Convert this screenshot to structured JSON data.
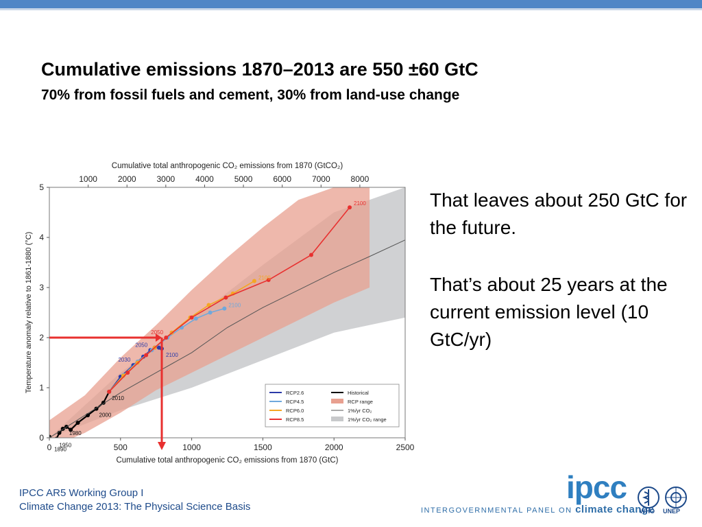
{
  "slide": {
    "title": "Cumulative emissions 1870–2013 are 550 ±60 GtC",
    "subtitle": "70% from fossil fuels and cement, 30% from land-use change",
    "side_text_1": "That leaves about 250 GtC for the future.",
    "side_text_2": "That’s about 25 years at the current emission level (10 GtC/yr)",
    "footer_line1": "IPCC AR5 Working Group I",
    "footer_line2": "Climate Change 2013:  The Physical Science Basis",
    "logo_text": "ipcc",
    "logo_tagline_prefix": "INTERGOVERNMENTAL PANEL ON ",
    "logo_tagline_suffix": "climate change",
    "who_label": "WHO",
    "unep_label": "UNEP",
    "accent_color": "#4f86c6"
  },
  "chart_data": {
    "type": "line",
    "title": "",
    "xlabel": "Cumulative total anthropogenic CO₂ emissions from 1870 (GtC)",
    "x2label": "Cumulative total anthropogenic CO₂ emissions from 1870 (GtCO₂)",
    "ylabel": "Temperature anomaly relative to 1861-1880 (°C)",
    "xlim": [
      0,
      2500
    ],
    "ylim": [
      0,
      5
    ],
    "xticks": [
      0,
      500,
      1000,
      1500,
      2000,
      2500
    ],
    "yticks": [
      0,
      1,
      2,
      3,
      4,
      5
    ],
    "x2ticks": [
      1000,
      2000,
      3000,
      4000,
      5000,
      6000,
      7000,
      8000
    ],
    "legend_position": "bottom-right",
    "series": [
      {
        "name": "Historical",
        "color": "#000000",
        "x": [
          0,
          15,
          30,
          50,
          70,
          95,
          120,
          150,
          200,
          270,
          330,
          380,
          420
        ],
        "y": [
          0.02,
          -0.1,
          -0.05,
          -0.02,
          0.1,
          0.18,
          0.22,
          0.16,
          0.3,
          0.45,
          0.58,
          0.7,
          0.92
        ],
        "point_labels": [
          {
            "i": 1,
            "text": "1890"
          },
          {
            "i": 3,
            "text": "1950"
          },
          {
            "i": 6,
            "text": "1980"
          },
          {
            "i": 10,
            "text": "2000"
          },
          {
            "i": 12,
            "text": "2010"
          }
        ]
      },
      {
        "name": "RCP2.6",
        "color": "#2b3aa8",
        "x": [
          420,
          500,
          590,
          660,
          710,
          740,
          770,
          790
        ],
        "y": [
          0.92,
          1.22,
          1.45,
          1.62,
          1.75,
          1.8,
          1.8,
          1.78
        ],
        "point_labels": [
          {
            "i": 2,
            "text": "2030"
          },
          {
            "i": 4,
            "text": "2050"
          },
          {
            "i": 7,
            "text": "2100"
          }
        ]
      },
      {
        "name": "RCP4.5",
        "color": "#6fa8dc",
        "x": [
          420,
          520,
          620,
          720,
          830,
          930,
          1030,
          1130,
          1230
        ],
        "y": [
          0.92,
          1.25,
          1.52,
          1.75,
          2.0,
          2.2,
          2.38,
          2.5,
          2.58
        ],
        "point_labels": [
          {
            "i": 8,
            "text": "2100"
          }
        ]
      },
      {
        "name": "RCP6.0",
        "color": "#f5a623",
        "x": [
          420,
          520,
          620,
          740,
          860,
          990,
          1120,
          1290,
          1440
        ],
        "y": [
          0.92,
          1.24,
          1.5,
          1.8,
          2.1,
          2.4,
          2.65,
          2.88,
          3.13
        ],
        "point_labels": [
          {
            "i": 8,
            "text": "2100"
          }
        ]
      },
      {
        "name": "RCP8.5",
        "color": "#e8302f",
        "x": [
          420,
          550,
          680,
          820,
          1000,
          1240,
          1540,
          1840,
          2110
        ],
        "y": [
          0.92,
          1.3,
          1.65,
          2.0,
          2.4,
          2.8,
          3.15,
          3.65,
          4.6
        ],
        "point_labels": [
          {
            "i": 3,
            "text": "2050"
          },
          {
            "i": 8,
            "text": "2100"
          }
        ]
      },
      {
        "name": "1%/yr CO₂",
        "color": "#555555",
        "x": [
          0,
          250,
          500,
          750,
          1000,
          1250,
          1500,
          1750,
          2000,
          2250,
          2500
        ],
        "y": [
          0,
          0.45,
          0.9,
          1.3,
          1.7,
          2.2,
          2.6,
          2.95,
          3.3,
          3.62,
          3.95
        ]
      }
    ],
    "ranges": [
      {
        "name": "RCP range",
        "color": "#e8a090",
        "x": [
          0,
          250,
          500,
          750,
          1000,
          1250,
          1500,
          1750,
          2000,
          2250
        ],
        "lower": [
          -0.2,
          0.1,
          0.5,
          0.95,
          1.3,
          1.65,
          2.0,
          2.35,
          2.7,
          3.0
        ],
        "upper": [
          0.35,
          0.85,
          1.6,
          2.25,
          2.95,
          3.6,
          4.2,
          4.75,
          5.0,
          5.0
        ]
      },
      {
        "name": "1%/yr CO₂ range",
        "color": "#c8c9cb",
        "x": [
          0,
          500,
          1000,
          1500,
          2000,
          2500
        ],
        "lower": [
          0,
          0.55,
          1.0,
          1.55,
          2.1,
          2.4
        ],
        "upper": [
          0,
          1.3,
          2.35,
          3.45,
          4.5,
          5.0
        ]
      }
    ],
    "annotation": {
      "x": 790,
      "y": 2.0,
      "color": "#e8302f"
    }
  }
}
